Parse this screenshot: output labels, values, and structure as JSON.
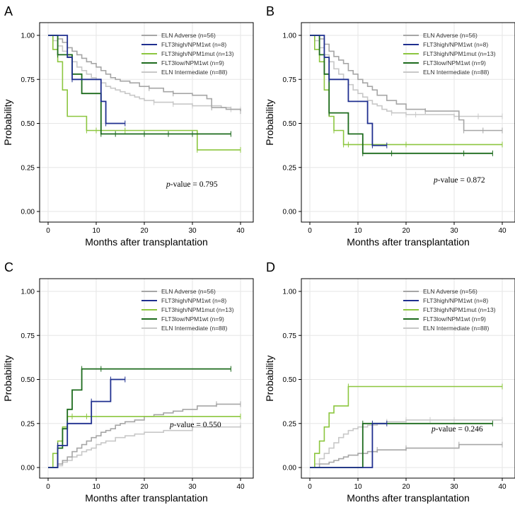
{
  "figure": {
    "legend": [
      {
        "id": "adverse",
        "label": "ELN Adverse (n=56)",
        "color": "#a6a6a6"
      },
      {
        "id": "flt3high_npm1wt",
        "label": "FLT3high/NPM1wt (n=8)",
        "color": "#1f2f8f"
      },
      {
        "id": "flt3high_npm1mut",
        "label": "FLT3high/NPM1mut (n=13)",
        "color": "#8cc63f"
      },
      {
        "id": "flt3low_npm1wt",
        "label": "FLT3low/NPM1wt (n=9)",
        "color": "#1d6b1d"
      },
      {
        "id": "intermediate",
        "label": "ELN Intermediate (n=88)",
        "color": "#c8c8c8"
      }
    ]
  },
  "chart_data": [
    {
      "panel": "A",
      "type": "line",
      "xlabel": "Months after transplantation",
      "ylabel": "Probability",
      "xlim": [
        0,
        40
      ],
      "ylim": [
        0,
        1
      ],
      "xticks": [
        "0",
        "10",
        "20",
        "30",
        "40"
      ],
      "yticks": [
        "0.00",
        "0.25",
        "0.50",
        "0.75",
        "1.00"
      ],
      "pvalue_label": "p",
      "pvalue_text": "-value = 0.795",
      "series": [
        {
          "id": "adverse",
          "x": [
            0,
            1,
            2,
            3,
            4,
            5,
            6,
            7,
            8,
            9,
            10,
            11,
            12,
            13,
            14,
            15,
            17,
            19,
            21,
            22,
            24,
            26,
            28,
            30,
            33,
            34,
            35,
            37,
            40
          ],
          "y": [
            1,
            1,
            0.98,
            0.96,
            0.93,
            0.91,
            0.89,
            0.87,
            0.85,
            0.84,
            0.82,
            0.8,
            0.78,
            0.76,
            0.75,
            0.74,
            0.73,
            0.71,
            0.7,
            0.7,
            0.68,
            0.67,
            0.67,
            0.66,
            0.64,
            0.59,
            0.59,
            0.58,
            0.57
          ]
        },
        {
          "id": "flt3high_npm1wt",
          "x": [
            0,
            3,
            4,
            5,
            9,
            11,
            12,
            16
          ],
          "y": [
            1,
            1,
            0.875,
            0.75,
            0.75,
            0.625,
            0.5,
            0.5
          ]
        },
        {
          "id": "flt3high_npm1mut",
          "x": [
            0,
            1,
            2,
            3,
            4,
            8,
            10,
            16,
            20,
            31,
            40
          ],
          "y": [
            1,
            0.92,
            0.85,
            0.69,
            0.54,
            0.46,
            0.46,
            0.46,
            0.46,
            0.35,
            0.35
          ]
        },
        {
          "id": "flt3low_npm1wt",
          "x": [
            0,
            2,
            3,
            5,
            7,
            11,
            14,
            20,
            25,
            30,
            38
          ],
          "y": [
            1,
            0.89,
            0.89,
            0.78,
            0.67,
            0.44,
            0.44,
            0.44,
            0.44,
            0.44,
            0.44
          ]
        },
        {
          "id": "intermediate",
          "x": [
            0,
            1,
            2,
            3,
            4,
            5,
            6,
            7,
            8,
            9,
            10,
            11,
            12,
            13,
            14,
            15,
            16,
            17,
            18,
            19,
            20,
            22,
            24,
            26,
            28,
            30,
            33,
            36,
            38,
            40
          ],
          "y": [
            1,
            0.97,
            0.94,
            0.91,
            0.88,
            0.85,
            0.82,
            0.8,
            0.78,
            0.76,
            0.75,
            0.73,
            0.71,
            0.7,
            0.69,
            0.68,
            0.67,
            0.66,
            0.65,
            0.64,
            0.63,
            0.62,
            0.62,
            0.61,
            0.61,
            0.6,
            0.6,
            0.59,
            0.58,
            0.58
          ]
        }
      ]
    },
    {
      "panel": "B",
      "type": "line",
      "xlabel": "Months after transplantation",
      "ylabel": "Probability",
      "xlim": [
        0,
        40
      ],
      "ylim": [
        0,
        1
      ],
      "xticks": [
        "0",
        "10",
        "20",
        "30",
        "40"
      ],
      "yticks": [
        "0.00",
        "0.25",
        "0.50",
        "0.75",
        "1.00"
      ],
      "pvalue_label": "p",
      "pvalue_text": "-value = 0.872",
      "series": [
        {
          "id": "adverse",
          "x": [
            0,
            2,
            3,
            4,
            5,
            6,
            7,
            8,
            9,
            10,
            11,
            12,
            13,
            14,
            16,
            18,
            20,
            24,
            27,
            31,
            32,
            36,
            40
          ],
          "y": [
            1,
            0.98,
            0.95,
            0.91,
            0.88,
            0.86,
            0.84,
            0.8,
            0.78,
            0.75,
            0.73,
            0.71,
            0.69,
            0.66,
            0.63,
            0.61,
            0.58,
            0.57,
            0.57,
            0.52,
            0.46,
            0.46,
            0.46
          ]
        },
        {
          "id": "flt3high_npm1wt",
          "x": [
            0,
            2,
            3,
            4,
            5,
            8,
            12,
            13,
            16
          ],
          "y": [
            1,
            1,
            0.875,
            0.75,
            0.75,
            0.625,
            0.5,
            0.375,
            0.375
          ]
        },
        {
          "id": "flt3high_npm1mut",
          "x": [
            0,
            1,
            2,
            3,
            4,
            5,
            6,
            7,
            8,
            20,
            40
          ],
          "y": [
            1,
            0.92,
            0.85,
            0.69,
            0.54,
            0.46,
            0.46,
            0.38,
            0.38,
            0.38,
            0.38
          ]
        },
        {
          "id": "flt3low_npm1wt",
          "x": [
            0,
            2,
            3,
            4,
            6,
            8,
            11,
            17,
            32,
            38
          ],
          "y": [
            1,
            0.89,
            0.78,
            0.56,
            0.56,
            0.44,
            0.33,
            0.33,
            0.33,
            0.33
          ]
        },
        {
          "id": "intermediate",
          "x": [
            0,
            1,
            2,
            3,
            4,
            5,
            6,
            7,
            8,
            9,
            10,
            11,
            12,
            13,
            14,
            15,
            16,
            17,
            18,
            20,
            22,
            25,
            30,
            35,
            40
          ],
          "y": [
            1,
            0.97,
            0.93,
            0.89,
            0.85,
            0.81,
            0.78,
            0.75,
            0.72,
            0.69,
            0.67,
            0.65,
            0.63,
            0.61,
            0.6,
            0.58,
            0.57,
            0.56,
            0.56,
            0.55,
            0.55,
            0.55,
            0.54,
            0.54,
            0.54
          ]
        }
      ]
    },
    {
      "panel": "C",
      "type": "line",
      "xlabel": "Months after transplantation",
      "ylabel": "Probability",
      "xlim": [
        0,
        40
      ],
      "ylim": [
        0,
        1
      ],
      "xticks": [
        "0",
        "10",
        "20",
        "30",
        "40"
      ],
      "yticks": [
        "0.00",
        "0.25",
        "0.50",
        "0.75",
        "1.00"
      ],
      "pvalue_label": "p",
      "pvalue_text": "-value = 0.550",
      "series": [
        {
          "id": "adverse",
          "x": [
            0,
            2,
            3,
            4,
            5,
            6,
            7,
            8,
            9,
            10,
            11,
            12,
            13,
            14,
            15,
            16,
            18,
            20,
            22,
            24,
            26,
            28,
            31,
            35,
            40
          ],
          "y": [
            0,
            0.02,
            0.04,
            0.06,
            0.09,
            0.11,
            0.13,
            0.15,
            0.17,
            0.18,
            0.2,
            0.21,
            0.22,
            0.24,
            0.25,
            0.26,
            0.27,
            0.29,
            0.3,
            0.31,
            0.32,
            0.33,
            0.35,
            0.36,
            0.36
          ]
        },
        {
          "id": "flt3high_npm1wt",
          "x": [
            0,
            2,
            3,
            4,
            5,
            9,
            12,
            13,
            16
          ],
          "y": [
            0,
            0.125,
            0.125,
            0.25,
            0.25,
            0.375,
            0.375,
            0.5,
            0.5
          ]
        },
        {
          "id": "flt3high_npm1mut",
          "x": [
            0,
            1,
            2,
            3,
            4,
            5,
            8,
            40
          ],
          "y": [
            0,
            0.08,
            0.15,
            0.23,
            0.29,
            0.29,
            0.29,
            0.29
          ]
        },
        {
          "id": "flt3low_npm1wt",
          "x": [
            0,
            2,
            3,
            4,
            5,
            7,
            11,
            38
          ],
          "y": [
            0,
            0.11,
            0.22,
            0.33,
            0.44,
            0.56,
            0.56,
            0.56
          ]
        },
        {
          "id": "intermediate",
          "x": [
            0,
            2,
            3,
            4,
            5,
            6,
            7,
            8,
            9,
            10,
            11,
            12,
            14,
            16,
            18,
            20,
            24,
            30,
            40
          ],
          "y": [
            0,
            0.01,
            0.03,
            0.04,
            0.06,
            0.07,
            0.09,
            0.1,
            0.11,
            0.13,
            0.14,
            0.15,
            0.17,
            0.18,
            0.19,
            0.2,
            0.21,
            0.23,
            0.24
          ]
        }
      ]
    },
    {
      "panel": "D",
      "type": "line",
      "xlabel": "Months after transplantation",
      "ylabel": "Probability",
      "xlim": [
        0,
        40
      ],
      "ylim": [
        0,
        1
      ],
      "xticks": [
        "0",
        "10",
        "20",
        "30",
        "40"
      ],
      "yticks": [
        "0.00",
        "0.25",
        "0.50",
        "0.75",
        "1.00"
      ],
      "pvalue_label": "p",
      "pvalue_text": "-value = 0.246",
      "series": [
        {
          "id": "adverse",
          "x": [
            0,
            2,
            4,
            5,
            6,
            7,
            8,
            10,
            12,
            14,
            16,
            20,
            25,
            31,
            40
          ],
          "y": [
            0,
            0.02,
            0.03,
            0.04,
            0.05,
            0.06,
            0.07,
            0.08,
            0.09,
            0.1,
            0.1,
            0.11,
            0.11,
            0.13,
            0.13
          ]
        },
        {
          "id": "flt3high_npm1wt",
          "x": [
            0,
            12,
            13,
            16
          ],
          "y": [
            0,
            0,
            0.25,
            0.25
          ]
        },
        {
          "id": "flt3high_npm1mut",
          "x": [
            0,
            1,
            2,
            3,
            4,
            5,
            8,
            40
          ],
          "y": [
            0,
            0.08,
            0.15,
            0.23,
            0.31,
            0.35,
            0.46,
            0.46
          ]
        },
        {
          "id": "flt3low_npm1wt",
          "x": [
            0,
            10,
            11,
            38
          ],
          "y": [
            0,
            0,
            0.25,
            0.25
          ]
        },
        {
          "id": "intermediate",
          "x": [
            0,
            1,
            2,
            3,
            4,
            5,
            6,
            7,
            8,
            9,
            10,
            12,
            14,
            16,
            18,
            20,
            25,
            30,
            40
          ],
          "y": [
            0,
            0.02,
            0.05,
            0.08,
            0.11,
            0.14,
            0.17,
            0.19,
            0.21,
            0.22,
            0.23,
            0.24,
            0.25,
            0.26,
            0.26,
            0.27,
            0.27,
            0.27,
            0.27
          ]
        }
      ]
    }
  ]
}
